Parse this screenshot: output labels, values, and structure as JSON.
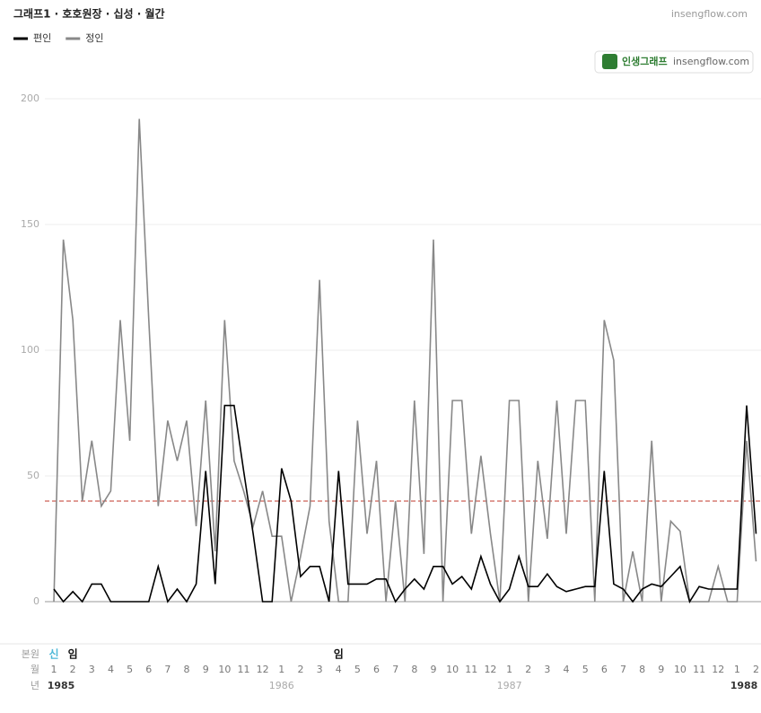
{
  "header": {
    "title": "그래프1 · 호호원장 · 십성 · 월간",
    "site": "insengflow.com"
  },
  "badge": {
    "brand": "인생그래프",
    "site": "insengflow.com"
  },
  "chart_data": {
    "type": "line",
    "x": [
      "1",
      null,
      "2",
      null,
      "3",
      null,
      "4",
      null,
      "5",
      null,
      "6",
      null,
      "7",
      null,
      "8",
      null,
      "9",
      null,
      "10",
      null,
      "11",
      null,
      "12",
      null,
      "1",
      null,
      "2",
      null,
      "3",
      null,
      "4",
      null,
      "5",
      null,
      "6",
      null,
      "7",
      null,
      "8",
      null,
      "9",
      null,
      "10",
      null,
      "11",
      null,
      "12",
      null,
      "1",
      null,
      "2",
      null,
      "3",
      null,
      "4",
      null,
      "5",
      null,
      "6",
      null,
      "7",
      null,
      "8",
      null,
      "9",
      null,
      "10",
      null,
      "11",
      null,
      "12",
      null,
      "1",
      null,
      "2"
    ],
    "series": [
      {
        "name": "편인",
        "color": "#000000",
        "values": [
          5,
          0,
          4,
          0,
          7,
          7,
          0,
          0,
          0,
          0,
          0,
          14,
          0,
          5,
          0,
          7,
          52,
          7,
          78,
          78,
          52,
          27,
          0,
          0,
          53,
          40,
          10,
          14,
          14,
          0,
          52,
          7,
          7,
          7,
          9,
          9,
          0,
          5,
          9,
          5,
          14,
          14,
          7,
          10,
          5,
          18,
          7,
          0,
          5,
          18,
          6,
          6,
          11,
          6,
          4,
          5,
          6,
          6,
          52,
          7,
          5,
          0,
          5,
          7,
          6,
          10,
          14,
          0,
          6,
          5,
          5,
          5,
          5,
          78,
          27
        ]
      },
      {
        "name": "정인",
        "color": "#888888",
        "values": [
          0,
          144,
          112,
          40,
          64,
          38,
          44,
          112,
          64,
          192,
          112,
          38,
          72,
          56,
          72,
          30,
          80,
          20,
          112,
          56,
          44,
          30,
          44,
          26,
          26,
          0,
          18,
          38,
          128,
          32,
          0,
          0,
          72,
          27,
          56,
          0,
          40,
          0,
          80,
          19,
          144,
          0,
          80,
          80,
          27,
          58,
          27,
          0,
          80,
          80,
          0,
          56,
          25,
          80,
          27,
          80,
          80,
          0,
          112,
          96,
          0,
          20,
          0,
          64,
          0,
          32,
          28,
          0,
          0,
          0,
          14,
          0,
          0,
          64,
          16
        ]
      }
    ],
    "ylim": [
      0,
      200
    ],
    "yticks": [
      0,
      50,
      100,
      150,
      200
    ],
    "grid": true,
    "reference_value": 40,
    "reference_color": "#c0392b"
  },
  "timeline": {
    "row_labels": [
      "본원",
      "월",
      "년"
    ],
    "stems": [
      "신",
      "임",
      null,
      null,
      null,
      null,
      null,
      null,
      null,
      null,
      null,
      null,
      null,
      null,
      null,
      "임",
      null,
      null,
      null,
      null,
      null,
      null,
      null,
      null,
      null,
      null,
      null,
      null,
      null,
      null,
      null,
      null,
      null,
      null,
      null,
      null,
      null,
      null
    ],
    "stem_colors": [
      "#4db8d8",
      "#111111",
      null,
      null,
      null,
      null,
      null,
      null,
      null,
      null,
      null,
      null,
      null,
      null,
      null,
      "#111111",
      null,
      null,
      null,
      null,
      null,
      null,
      null,
      null,
      null,
      null,
      null,
      null,
      null,
      null,
      null,
      null,
      null,
      null,
      null,
      null,
      null,
      null
    ],
    "years": [
      "1985",
      "1986",
      "1987",
      "1988"
    ]
  }
}
